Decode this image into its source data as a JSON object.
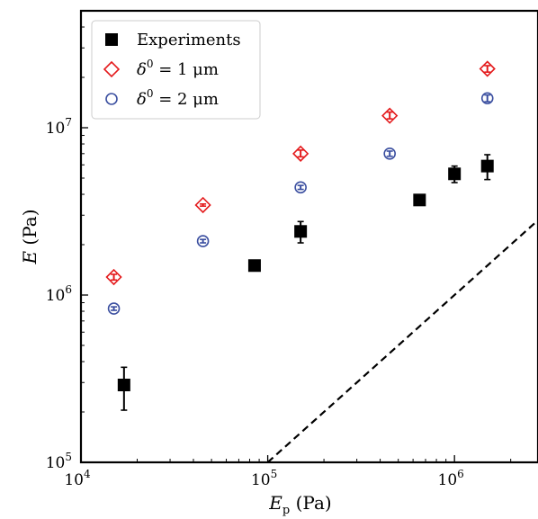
{
  "chart_data": {
    "type": "scatter",
    "xscale": "log",
    "yscale": "log",
    "xlim": [
      10000,
      2800000
    ],
    "ylim": [
      100000,
      50000000
    ],
    "x_ticks": [
      {
        "value": 10000,
        "base": "10",
        "exp": "4"
      },
      {
        "value": 100000,
        "base": "10",
        "exp": "5"
      },
      {
        "value": 1000000,
        "base": "10",
        "exp": "6"
      }
    ],
    "y_ticks": [
      {
        "value": 100000,
        "base": "10",
        "exp": "5"
      },
      {
        "value": 1000000,
        "base": "10",
        "exp": "6"
      },
      {
        "value": 10000000,
        "base": "10",
        "exp": "7"
      }
    ],
    "xlabel": {
      "main": "E",
      "sub": "p",
      "unit": " (Pa)"
    },
    "ylabel": {
      "main": "E",
      "unit": " (Pa)"
    },
    "grid": false,
    "legend_position": "top-left",
    "series": [
      {
        "name": "Experiments",
        "marker": "filled-square",
        "color": "#000000",
        "points": [
          {
            "x": 17000,
            "y": 290000,
            "ylo": 205000,
            "yhi": 370000
          },
          {
            "x": 85000,
            "y": 1500000,
            "ylo": 1420000,
            "yhi": 1600000
          },
          {
            "x": 150000,
            "y": 2400000,
            "ylo": 2050000,
            "yhi": 2750000
          },
          {
            "x": 650000,
            "y": 3700000,
            "ylo": 3600000,
            "yhi": 3800000
          },
          {
            "x": 1000000,
            "y": 5300000,
            "ylo": 4700000,
            "yhi": 5900000
          },
          {
            "x": 1500000,
            "y": 5900000,
            "ylo": 4900000,
            "yhi": 6900000
          }
        ]
      },
      {
        "name_parts": {
          "symbol": "δ",
          "sup": "0",
          "rest": " = 1 μm"
        },
        "marker": "open-diamond",
        "color": "#e41a1c",
        "points": [
          {
            "x": 15000,
            "y": 1280000,
            "ylo": 1230000,
            "yhi": 1330000
          },
          {
            "x": 45000,
            "y": 3450000,
            "ylo": 3400000,
            "yhi": 3500000
          },
          {
            "x": 150000,
            "y": 7000000,
            "ylo": 6700000,
            "yhi": 7350000
          },
          {
            "x": 450000,
            "y": 11800000,
            "ylo": 11300000,
            "yhi": 12400000
          },
          {
            "x": 1500000,
            "y": 22500000,
            "ylo": 21500000,
            "yhi": 23500000
          }
        ]
      },
      {
        "name_parts": {
          "symbol": "δ",
          "sup": "0",
          "rest": " = 2 μm"
        },
        "marker": "open-circle",
        "color": "#3b4fa0",
        "points": [
          {
            "x": 15000,
            "y": 830000,
            "ylo": 810000,
            "yhi": 850000
          },
          {
            "x": 45000,
            "y": 2100000,
            "ylo": 2050000,
            "yhi": 2150000
          },
          {
            "x": 150000,
            "y": 4400000,
            "ylo": 4280000,
            "yhi": 4520000
          },
          {
            "x": 450000,
            "y": 7000000,
            "ylo": 6750000,
            "yhi": 7250000
          },
          {
            "x": 1500000,
            "y": 15000000,
            "ylo": 14300000,
            "yhi": 15700000
          }
        ]
      }
    ],
    "reference_line": {
      "style": "dashed",
      "color": "#000000",
      "points": [
        [
          100000,
          100000
        ],
        [
          2800000,
          2800000
        ]
      ]
    }
  }
}
